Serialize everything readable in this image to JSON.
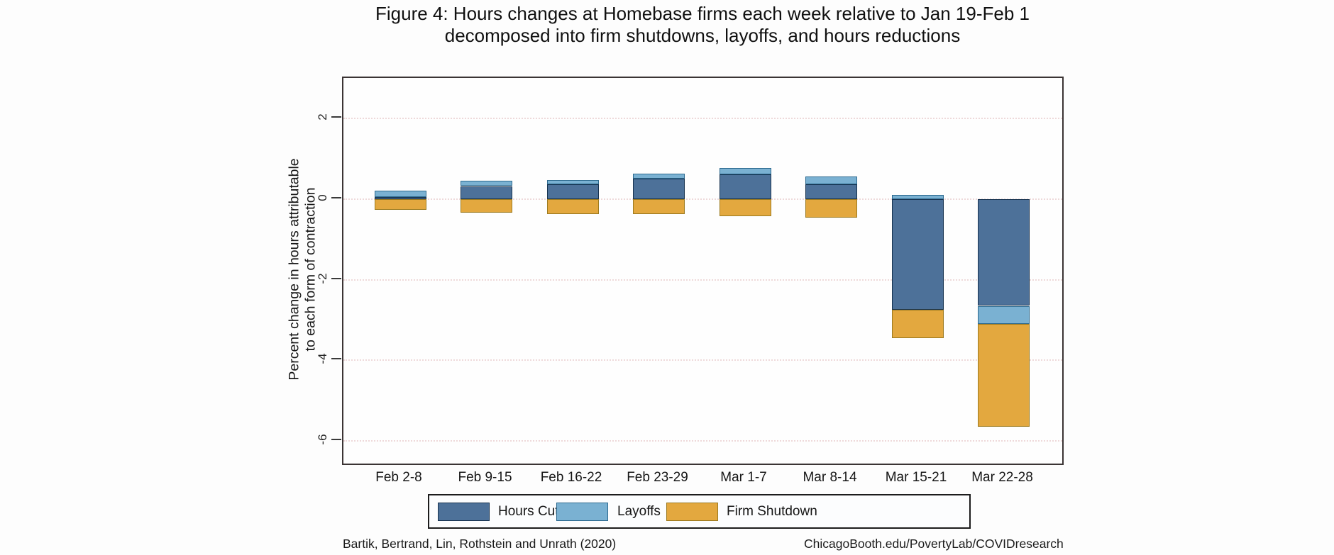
{
  "figure": {
    "title_line1": "Figure 4: Hours changes at Homebase firms each week relative to Jan 19-Feb 1",
    "title_line2": "decomposed into firm shutdowns, layoffs, and hours reductions",
    "source_left": "Bartik, Bertrand, Lin, Rothstein and Unrath (2020)",
    "source_right": "ChicagoBooth.edu/PovertyLab/COVIDresearch"
  },
  "chart_data": {
    "type": "bar",
    "stacked": true,
    "title": "Figure 4: Hours changes at Homebase firms each week relative to Jan 19-Feb 1 decomposed into firm shutdowns, layoffs, and hours reductions",
    "ylabel_line1": "Percent change in hours attributable",
    "ylabel_line2": "to each form of contraction",
    "xlabel": "",
    "categories": [
      "Feb 2-8",
      "Feb 9-15",
      "Feb 16-22",
      "Feb 23-29",
      "Mar 1-7",
      "Mar 8-14",
      "Mar 15-21",
      "Mar 22-28"
    ],
    "series": [
      {
        "name": "Hours Cut",
        "color": "#4d7199",
        "border_color": "#16324f",
        "values": [
          0.05,
          0.32,
          0.37,
          0.5,
          0.61,
          0.37,
          -2.75,
          -2.65
        ]
      },
      {
        "name": "Layoffs",
        "color": "#7ab1d2",
        "border_color": "#2d6a8f",
        "values": [
          0.15,
          0.14,
          0.1,
          0.12,
          0.16,
          0.18,
          0.1,
          -0.45
        ]
      },
      {
        "name": "Firm Shutdown",
        "color": "#e3a83f",
        "border_color": "#9c7a1f",
        "values": [
          -0.27,
          -0.34,
          -0.37,
          -0.37,
          -0.43,
          -0.46,
          -0.7,
          -2.55
        ]
      }
    ],
    "yticks": [
      {
        "label": "2",
        "value": 2
      },
      {
        "label": "0",
        "value": 0
      },
      {
        "label": "-2",
        "value": -2
      },
      {
        "label": "-4",
        "value": -4
      },
      {
        "label": "-6",
        "value": -6
      }
    ],
    "ylim": [
      3.0,
      -6.56
    ],
    "grid": true,
    "gridline_color": "#eed9da",
    "legend_position": "bottom"
  }
}
